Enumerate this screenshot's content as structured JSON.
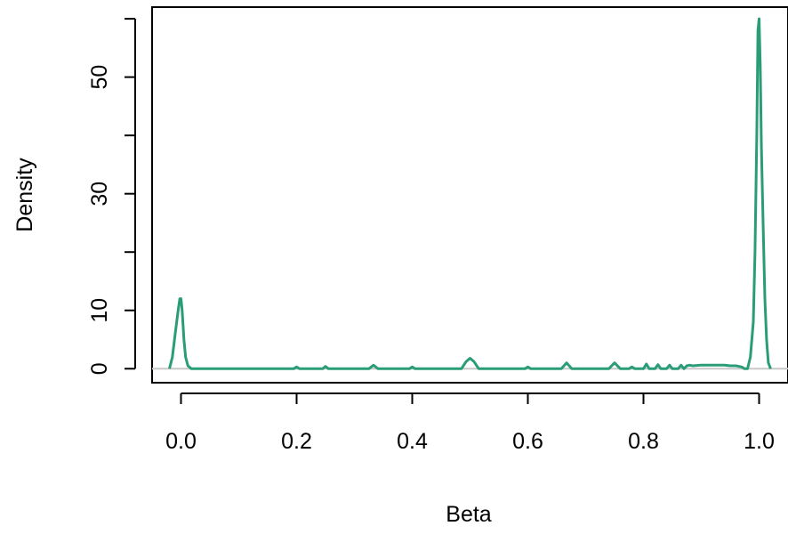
{
  "chart_data": {
    "type": "line",
    "title": "",
    "xlabel": "Beta",
    "ylabel": "Density",
    "xlim": [
      -0.05,
      1.05
    ],
    "ylim": [
      -2.4,
      62
    ],
    "x_ticks": [
      0.0,
      0.2,
      0.4,
      0.6,
      0.8,
      1.0
    ],
    "x_tick_labels": [
      "0.0",
      "0.2",
      "0.4",
      "0.6",
      "0.8",
      "1.0"
    ],
    "y_ticks": [
      0,
      10,
      20,
      30,
      40,
      50,
      60
    ],
    "y_tick_labels": [
      "0",
      "10",
      "",
      "30",
      "",
      "50",
      ""
    ],
    "grid": false,
    "legend": "none",
    "baseline": 0,
    "colors": {
      "line": "#2a9d78",
      "baseline": "#c8c8c8",
      "axes": "#000000"
    },
    "series": [
      {
        "x": [
          -0.02,
          -0.015,
          -0.01,
          -0.005,
          -0.002,
          0.0,
          0.002,
          0.005,
          0.008,
          0.012,
          0.018,
          0.03,
          0.1,
          0.195,
          0.2,
          0.205,
          0.245,
          0.25,
          0.255,
          0.325,
          0.333,
          0.341,
          0.395,
          0.4,
          0.405,
          0.485,
          0.493,
          0.5,
          0.507,
          0.515,
          0.595,
          0.6,
          0.605,
          0.658,
          0.667,
          0.676,
          0.74,
          0.75,
          0.76,
          0.775,
          0.78,
          0.785,
          0.8,
          0.805,
          0.81,
          0.82,
          0.825,
          0.83,
          0.84,
          0.845,
          0.85,
          0.86,
          0.865,
          0.87,
          0.875,
          0.88,
          0.885,
          0.9,
          0.92,
          0.94,
          0.95,
          0.96,
          0.97,
          0.975,
          0.98,
          0.985,
          0.99,
          0.993,
          0.996,
          0.998,
          1.0,
          1.002,
          1.004,
          1.007,
          1.01,
          1.013,
          1.016,
          1.02
        ],
        "y": [
          0,
          2,
          6,
          10,
          12,
          12,
          10,
          5,
          2,
          0.5,
          0,
          0,
          0,
          0,
          0.3,
          0,
          0,
          0.4,
          0,
          0,
          0.6,
          0,
          0,
          0.3,
          0,
          0,
          1.2,
          1.8,
          1.2,
          0,
          0,
          0.3,
          0,
          0,
          1,
          0,
          0,
          1,
          0,
          0,
          0.3,
          0,
          0,
          0.8,
          0,
          0,
          0.7,
          0,
          0,
          0.6,
          0,
          0,
          0.6,
          0,
          0.5,
          0.6,
          0.5,
          0.6,
          0.6,
          0.6,
          0.5,
          0.5,
          0.3,
          0,
          0,
          2,
          8,
          20,
          40,
          58,
          60,
          52,
          38,
          25,
          12,
          5,
          1,
          0
        ]
      }
    ]
  }
}
